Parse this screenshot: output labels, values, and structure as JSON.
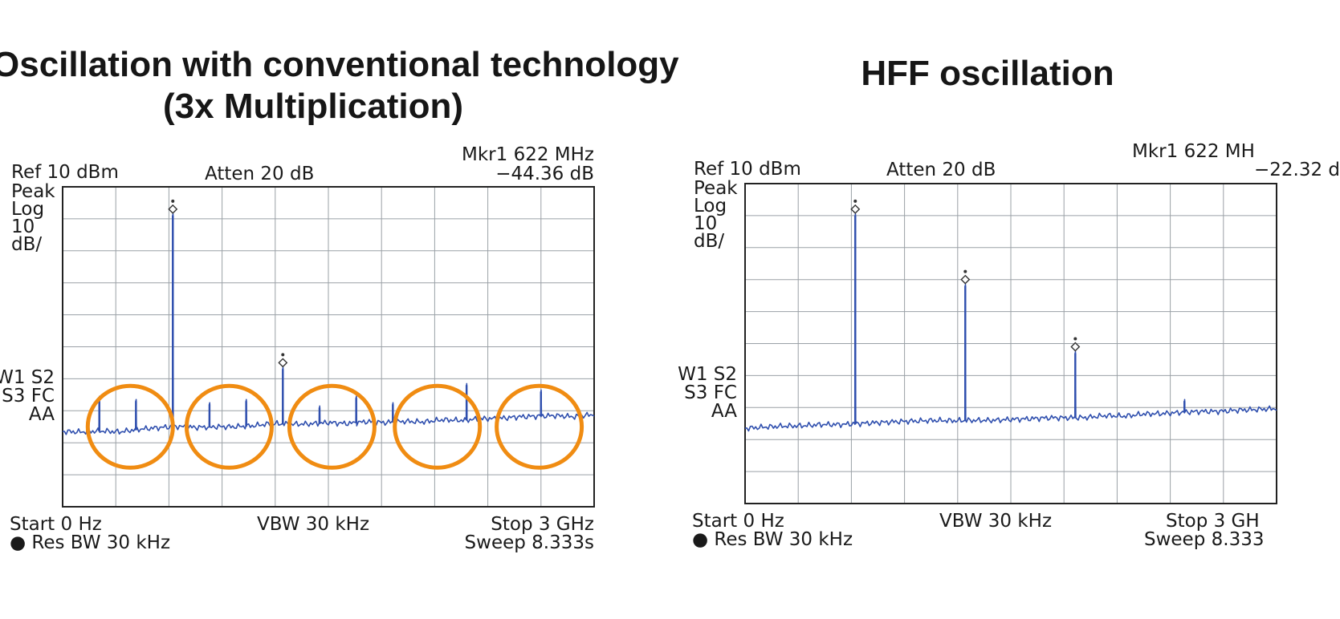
{
  "titles": {
    "left": "Oscillation with conventional technology",
    "left_sub": "(3x Multiplication)",
    "right": "HFF oscillation"
  },
  "colors": {
    "trace": "#2f4fae",
    "grid": "#9aa0a6",
    "frame": "#222222",
    "highlight": "#f08c12"
  },
  "chart_data": [
    {
      "type": "line",
      "title": "Oscillation with conventional technology (3x Multiplication)",
      "x_unit": "Hz",
      "y_unit": "dB",
      "xlim": [
        0,
        3000000000
      ],
      "ylim": [
        -90,
        10
      ],
      "grid": true,
      "grid_divisions": [
        10,
        10
      ],
      "annotations": {
        "ref": "Ref 10 dBm",
        "peak": "Peak",
        "log": "Log",
        "scale": "10",
        "scale_unit": "dB/",
        "atten": "Atten 20 dB",
        "marker_label": "Mkr1 622 MHz",
        "marker_value": "−44.36 dB",
        "w1s2": "W1 S2",
        "s3fc": "S3 FC",
        "aa": "AA",
        "start": "Start 0 Hz",
        "res_bw": "● Res BW 30 kHz",
        "vbw": "VBW 30 kHz",
        "stop": "Stop 3 GHz",
        "sweep": "Sweep 8.333s"
      },
      "noise_floor_db": [
        -66.5,
        -66.6,
        -66.3,
        -66.6,
        -65.8,
        -65.3,
        -64.9,
        -65.2,
        -65.0,
        -65.0,
        -64.7,
        -64.0,
        -64.2,
        -64.1,
        -63.7,
        -64.0,
        -63.4,
        -63.7,
        -63.3,
        -63.5,
        -62.8,
        -63.0,
        -62.5,
        -62.4,
        -61.9,
        -61.7,
        -61.5,
        -61.9,
        -61.1
      ],
      "peaks": [
        {
          "x_mhz": 207,
          "db": -56
        },
        {
          "x_mhz": 414,
          "db": -57
        },
        {
          "x_mhz": 622,
          "db": 1
        },
        {
          "x_mhz": 829,
          "db": -58
        },
        {
          "x_mhz": 1036,
          "db": -57
        },
        {
          "x_mhz": 1243,
          "db": -47
        },
        {
          "x_mhz": 1450,
          "db": -59
        },
        {
          "x_mhz": 1657,
          "db": -56
        },
        {
          "x_mhz": 1864,
          "db": -58
        },
        {
          "x_mhz": 2280,
          "db": -52
        },
        {
          "x_mhz": 2700,
          "db": -54
        }
      ],
      "highlight_circles_mhz": [
        382,
        940,
        1520,
        2115,
        2690
      ]
    },
    {
      "type": "line",
      "title": "HFF oscillation",
      "x_unit": "Hz",
      "y_unit": "dB",
      "xlim": [
        0,
        3000000000
      ],
      "ylim": [
        -90,
        10
      ],
      "grid": true,
      "grid_divisions": [
        10,
        10
      ],
      "annotations": {
        "ref": "Ref 10 dBm",
        "peak": "Peak",
        "log": "Log",
        "scale": "10",
        "scale_unit": "dB/",
        "atten": "Atten 20 dB",
        "marker_label": "Mkr1 622 MH",
        "marker_value": "−22.32 d",
        "w1s2": "W1 S2",
        "s3fc": "S3 FC",
        "aa": "AA",
        "start": "Start 0 Hz",
        "res_bw": "● Res BW 30 kHz",
        "vbw": "VBW 30 kHz",
        "stop": "Stop 3 GH",
        "sweep": "Sweep 8.333"
      },
      "noise_floor_db": [
        -66.5,
        -66.1,
        -65.8,
        -65.7,
        -65.3,
        -65.3,
        -65.0,
        -64.7,
        -64.4,
        -64.2,
        -64.0,
        -64.1,
        -64.0,
        -64.0,
        -63.7,
        -63.5,
        -63.2,
        -63.2,
        -63.1,
        -62.5,
        -62.7,
        -62.0,
        -61.9,
        -61.5,
        -61.2,
        -61.2,
        -60.8,
        -60.6,
        -60.3
      ],
      "peaks": [
        {
          "x_mhz": 622,
          "db": 0
        },
        {
          "x_mhz": 1243,
          "db": -22
        },
        {
          "x_mhz": 1864,
          "db": -43
        },
        {
          "x_mhz": 2480,
          "db": -58
        }
      ],
      "highlight_circles_mhz": []
    }
  ]
}
